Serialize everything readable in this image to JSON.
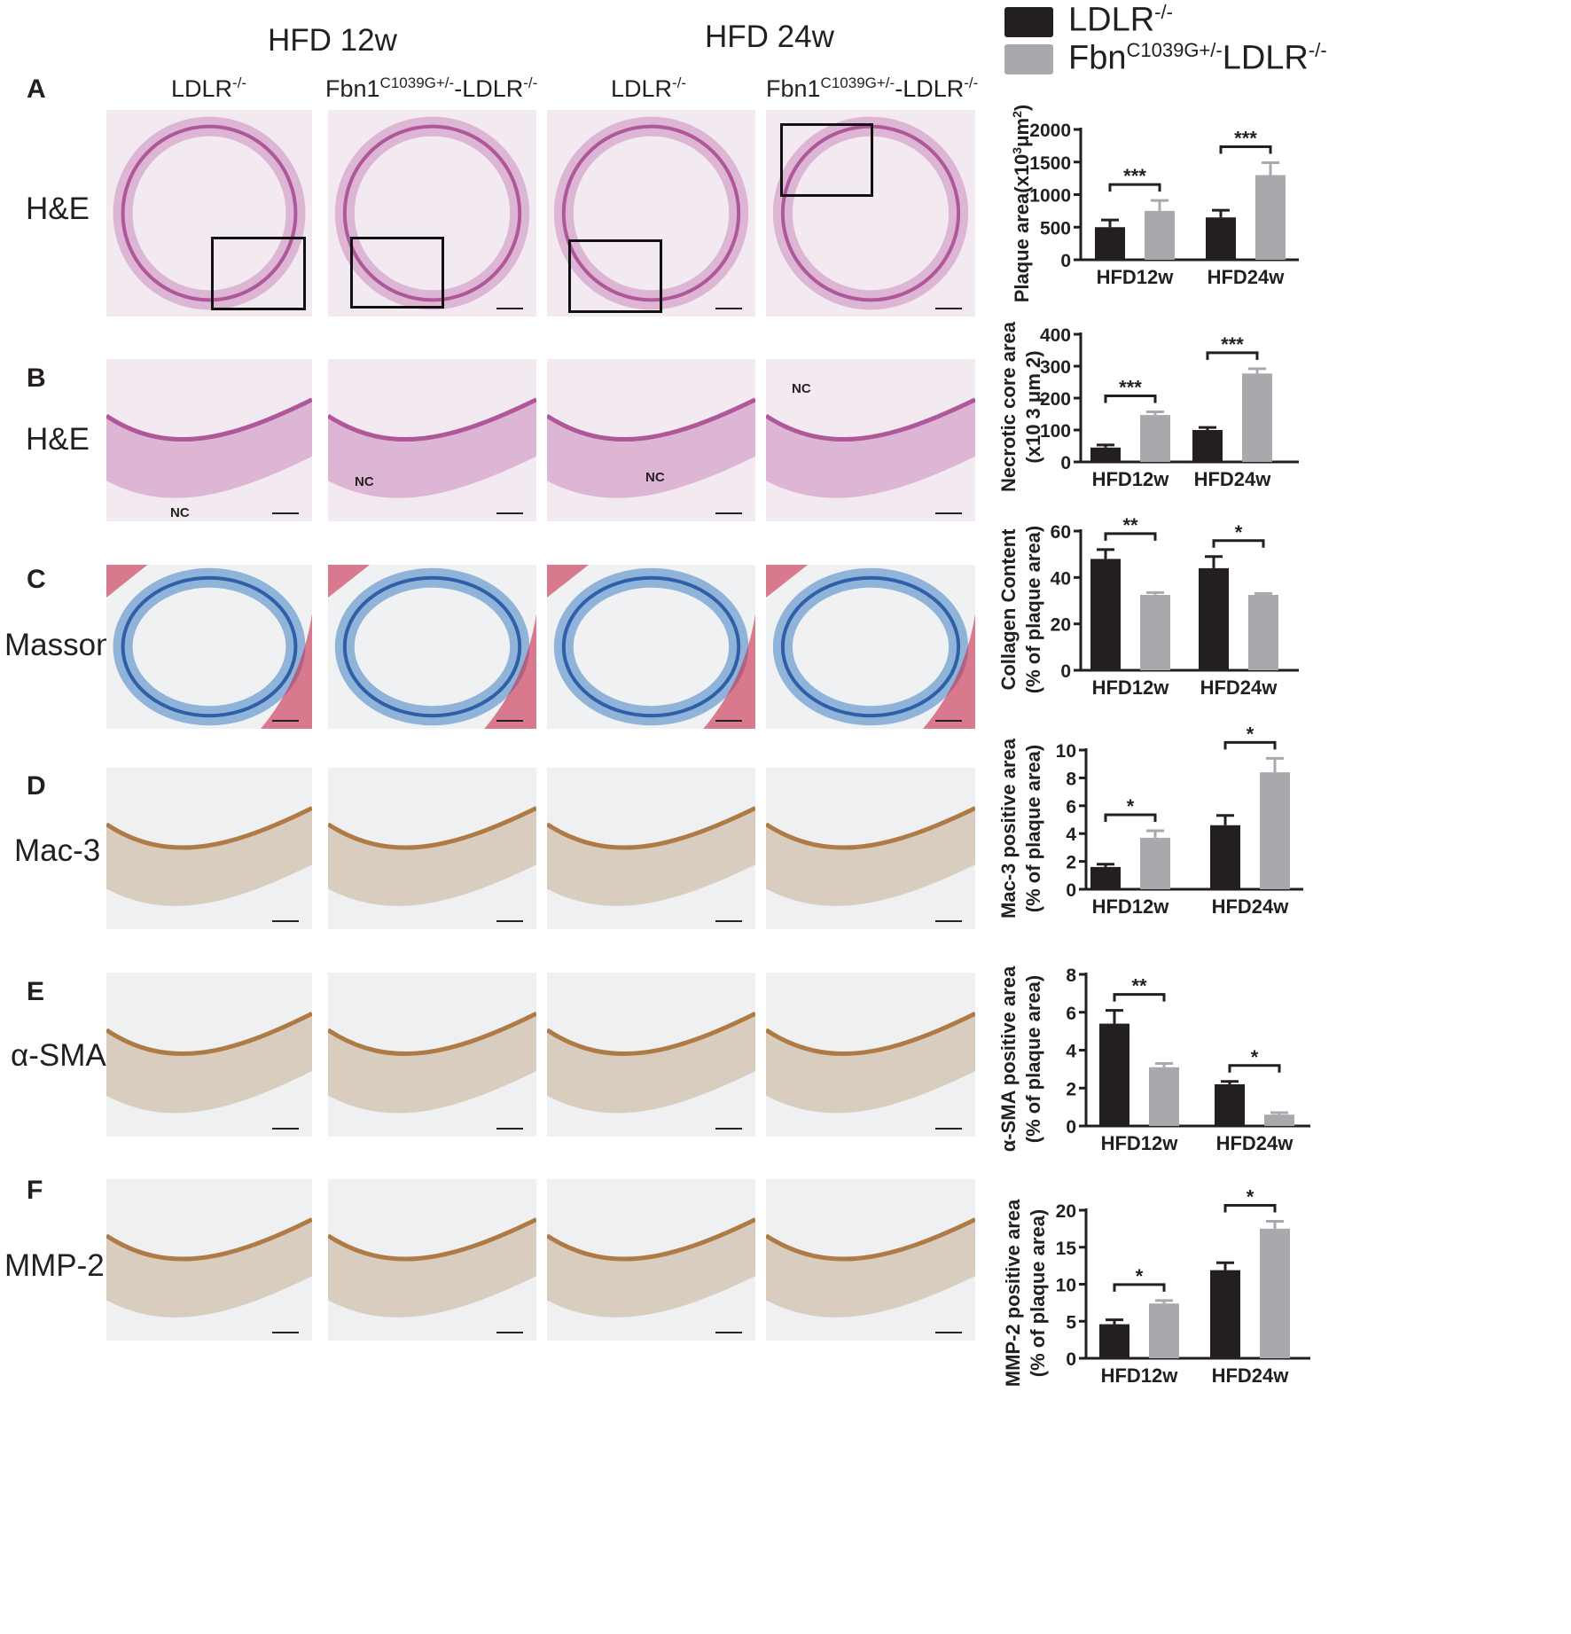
{
  "header": {
    "group_12w": "HFD 12w",
    "group_24w": "HFD 24w",
    "columns": [
      {
        "base": "LDLR",
        "sup": "-/-",
        "prefix": ""
      },
      {
        "prefix": "Fbn1",
        "sup1": "C1039G+/-",
        "base": "LDLR",
        "sup": "-/-"
      },
      {
        "base": "LDLR",
        "sup": "-/-",
        "prefix": ""
      },
      {
        "prefix": "Fbn1",
        "sup1": "C1039G+/-",
        "base": "LDLR",
        "sup": "-/-"
      }
    ]
  },
  "rows": [
    {
      "letter": "A",
      "label": "H&E",
      "stain": "he"
    },
    {
      "letter": "B",
      "label": "H&E",
      "stain": "he"
    },
    {
      "letter": "C",
      "label": "Masson",
      "stain": "masson"
    },
    {
      "letter": "D",
      "label": "Mac-3",
      "stain": "ihc"
    },
    {
      "letter": "E",
      "label": "α-SMA",
      "stain": "ihc"
    },
    {
      "letter": "F",
      "label": "MMP-2",
      "stain": "ihc"
    }
  ],
  "annotations": {
    "nc": "NC"
  },
  "legend": [
    {
      "base": "LDLR",
      "sup": "-/-",
      "color": "#231f20"
    },
    {
      "prefix": "Fbn",
      "sup1": "C1039G+/-",
      "base": "LDLR",
      "sup": "-/-",
      "color": "#a7a9ac"
    }
  ],
  "chart_data": [
    {
      "type": "bar",
      "categories": [
        "HFD12w",
        "HFD24w"
      ],
      "series": [
        {
          "name": "LDLR-/-",
          "values": [
            500,
            650
          ],
          "errors": [
            110,
            110
          ]
        },
        {
          "name": "FbnC1039G+/-LDLR-/-",
          "values": [
            750,
            1300
          ],
          "errors": [
            160,
            190
          ]
        }
      ],
      "ylabel_parts": [
        "Plaque area(x10",
        "3",
        "μm",
        "2",
        ")"
      ],
      "ylim": [
        0,
        2000
      ],
      "ticks": [
        0,
        500,
        1000,
        1500,
        2000
      ],
      "tick_labels": [
        "0",
        "500",
        "1000",
        "1500",
        "2000"
      ],
      "significance": [
        "***",
        "***"
      ]
    },
    {
      "type": "bar",
      "categories": [
        "HFD12w",
        "HFD24w"
      ],
      "series": [
        {
          "name": "LDLR-/-",
          "values": [
            45,
            100
          ],
          "errors": [
            8,
            8
          ]
        },
        {
          "name": "FbnC1039G+/-LDLR-/-",
          "values": [
            147,
            277
          ],
          "errors": [
            10,
            15
          ]
        }
      ],
      "ylabel_lines": [
        "Necrotic core area",
        "(x10 3 μm 2)"
      ],
      "ylim": [
        0,
        400
      ],
      "ticks": [
        0,
        100,
        200,
        300,
        400
      ],
      "tick_labels": [
        "0",
        "100",
        "200",
        "300",
        "400"
      ],
      "significance": [
        "***",
        "***"
      ]
    },
    {
      "type": "bar",
      "categories": [
        "HFD12w",
        "HFD24w"
      ],
      "series": [
        {
          "name": "LDLR-/-",
          "values": [
            48,
            44
          ],
          "errors": [
            4,
            5
          ]
        },
        {
          "name": "FbnC1039G+/-LDLR-/-",
          "values": [
            32.5,
            32.5
          ],
          "errors": [
            1,
            0.6
          ]
        }
      ],
      "ylabel_lines": [
        "Collagen Content",
        "(% of plaque area)"
      ],
      "ylim": [
        0,
        60
      ],
      "ticks": [
        0,
        20,
        40,
        60
      ],
      "tick_labels": [
        "0",
        "20",
        "40",
        "60"
      ],
      "significance": [
        "**",
        "*"
      ]
    },
    {
      "type": "bar",
      "categories": [
        "HFD12w",
        "HFD24w"
      ],
      "series": [
        {
          "name": "LDLR-/-",
          "values": [
            1.6,
            4.6
          ],
          "errors": [
            0.2,
            0.7
          ]
        },
        {
          "name": "FbnC1039G+/-LDLR-/-",
          "values": [
            3.7,
            8.4
          ],
          "errors": [
            0.5,
            1.0
          ]
        }
      ],
      "ylabel_lines": [
        "Mac-3 positive area",
        "(% of plaque area)"
      ],
      "ylim": [
        0,
        10
      ],
      "ticks": [
        0,
        2,
        4,
        6,
        8,
        10
      ],
      "tick_labels": [
        "0",
        "2",
        "4",
        "6",
        "8",
        "10"
      ],
      "significance": [
        "*",
        "*"
      ]
    },
    {
      "type": "bar",
      "categories": [
        "HFD12w",
        "HFD24w"
      ],
      "series": [
        {
          "name": "LDLR-/-",
          "values": [
            5.4,
            2.2
          ],
          "errors": [
            0.7,
            0.15
          ]
        },
        {
          "name": "FbnC1039G+/-LDLR-/-",
          "values": [
            3.1,
            0.6
          ],
          "errors": [
            0.2,
            0.1
          ]
        }
      ],
      "ylabel_lines": [
        "α-SMA positive area",
        "(% of plaque area)"
      ],
      "ylim": [
        0,
        8
      ],
      "ticks": [
        0,
        2,
        4,
        6,
        8
      ],
      "tick_labels": [
        "0",
        "2",
        "4",
        "6",
        "8"
      ],
      "significance": [
        "**",
        "*"
      ]
    },
    {
      "type": "bar",
      "categories": [
        "HFD12w",
        "HFD24w"
      ],
      "series": [
        {
          "name": "LDLR-/-",
          "values": [
            4.6,
            11.9
          ],
          "errors": [
            0.6,
            1.0
          ]
        },
        {
          "name": "FbnC1039G+/-LDLR-/-",
          "values": [
            7.4,
            17.5
          ],
          "errors": [
            0.4,
            1.0
          ]
        }
      ],
      "ylabel_lines": [
        "MMP-2 positive area",
        "(% of plaque area)"
      ],
      "ylim": [
        0,
        20
      ],
      "ticks": [
        0,
        5,
        10,
        15,
        20
      ],
      "tick_labels": [
        "0",
        "5",
        "10",
        "15",
        "20"
      ],
      "significance": [
        "*",
        "*"
      ]
    }
  ]
}
